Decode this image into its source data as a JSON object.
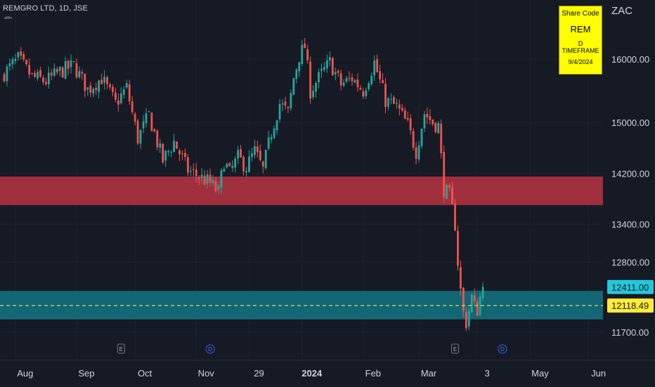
{
  "header": {
    "symbol_line": "REMGRO LTD, 1D, JSE",
    "sub_line": "ᵃᵂᵒ"
  },
  "currency_label": "ZAC",
  "info_box": {
    "title": "Share Code",
    "code": "REM",
    "timeframe": "D TIMEFRAME",
    "date": "9/4/2024"
  },
  "colors": {
    "background": "#161a25",
    "up_candle": "#26a69a",
    "down_candle": "#ef5350",
    "resistance_zone": "#a8303e",
    "support_zone": "#136a77",
    "price_tag_last": "#26c6da",
    "price_tag_level": "#ffeb3b"
  },
  "chart_data": {
    "type": "candlestick",
    "title": "REMGRO LTD, 1D, JSE",
    "y_axis": {
      "ticks": [
        "16000.00",
        "15000.00",
        "14200.00",
        "13400.00",
        "12800.00",
        "11700.00"
      ],
      "tick_values": [
        16000,
        15000,
        14200,
        13400,
        12800,
        11700
      ],
      "range": [
        11550,
        16750
      ]
    },
    "x_axis": {
      "labels": [
        "Aug",
        "Sep",
        "Oct",
        "Nov",
        "29",
        "2024",
        "Feb",
        "Mar",
        "3",
        "May",
        "Jun"
      ],
      "label_index": [
        4,
        26,
        47,
        69,
        88,
        107,
        129,
        149,
        170,
        189,
        210
      ]
    },
    "zones": [
      {
        "name": "resistance",
        "from": 13700,
        "to": 14150
      },
      {
        "name": "support",
        "from": 11900,
        "to": 12350
      }
    ],
    "horizontal_line": {
      "value": 12118.49
    },
    "price_tags": [
      {
        "label": "12411.00",
        "value": 12411,
        "kind": "last"
      },
      {
        "label": "12118.49",
        "value": 12118.49,
        "kind": "level"
      }
    ],
    "event_markers": [
      {
        "label": "E",
        "index": 42
      },
      {
        "label": "D",
        "index": 74
      },
      {
        "label": "E",
        "index": 162
      },
      {
        "label": "D",
        "index": 179
      }
    ],
    "close_path": [
      [
        0,
        15780
      ],
      [
        5,
        16000
      ],
      [
        10,
        15720
      ],
      [
        15,
        15650
      ],
      [
        20,
        15800
      ],
      [
        25,
        15900
      ],
      [
        30,
        15520
      ],
      [
        35,
        15700
      ],
      [
        40,
        15300
      ],
      [
        44,
        15550
      ],
      [
        48,
        14750
      ],
      [
        52,
        15120
      ],
      [
        57,
        14400
      ],
      [
        61,
        14700
      ],
      [
        66,
        14250
      ],
      [
        70,
        14150
      ],
      [
        74,
        14050
      ],
      [
        77,
        13900
      ],
      [
        79,
        14400
      ],
      [
        81,
        14200
      ],
      [
        84,
        14450
      ],
      [
        87,
        14300
      ],
      [
        90,
        14550
      ],
      [
        93,
        14250
      ],
      [
        96,
        14850
      ],
      [
        99,
        15300
      ],
      [
        102,
        15150
      ],
      [
        104,
        15700
      ],
      [
        106,
        16050
      ],
      [
        108,
        16200
      ],
      [
        110,
        15500
      ],
      [
        113,
        15700
      ],
      [
        117,
        15950
      ],
      [
        121,
        15600
      ],
      [
        125,
        15700
      ],
      [
        129,
        15500
      ],
      [
        133,
        15950
      ],
      [
        137,
        15350
      ],
      [
        141,
        15250
      ],
      [
        145,
        14950
      ],
      [
        148,
        14550
      ],
      [
        151,
        15150
      ],
      [
        154,
        15000
      ],
      [
        156,
        14950
      ],
      [
        158,
        13950
      ],
      [
        160,
        13850
      ],
      [
        162,
        13400
      ],
      [
        163,
        12800
      ],
      [
        164,
        12350
      ],
      [
        165,
        12000
      ],
      [
        166,
        11850
      ],
      [
        167,
        12050
      ],
      [
        168,
        12250
      ],
      [
        169,
        12100
      ],
      [
        170,
        12050
      ],
      [
        171,
        12250
      ],
      [
        172,
        12411
      ]
    ]
  }
}
